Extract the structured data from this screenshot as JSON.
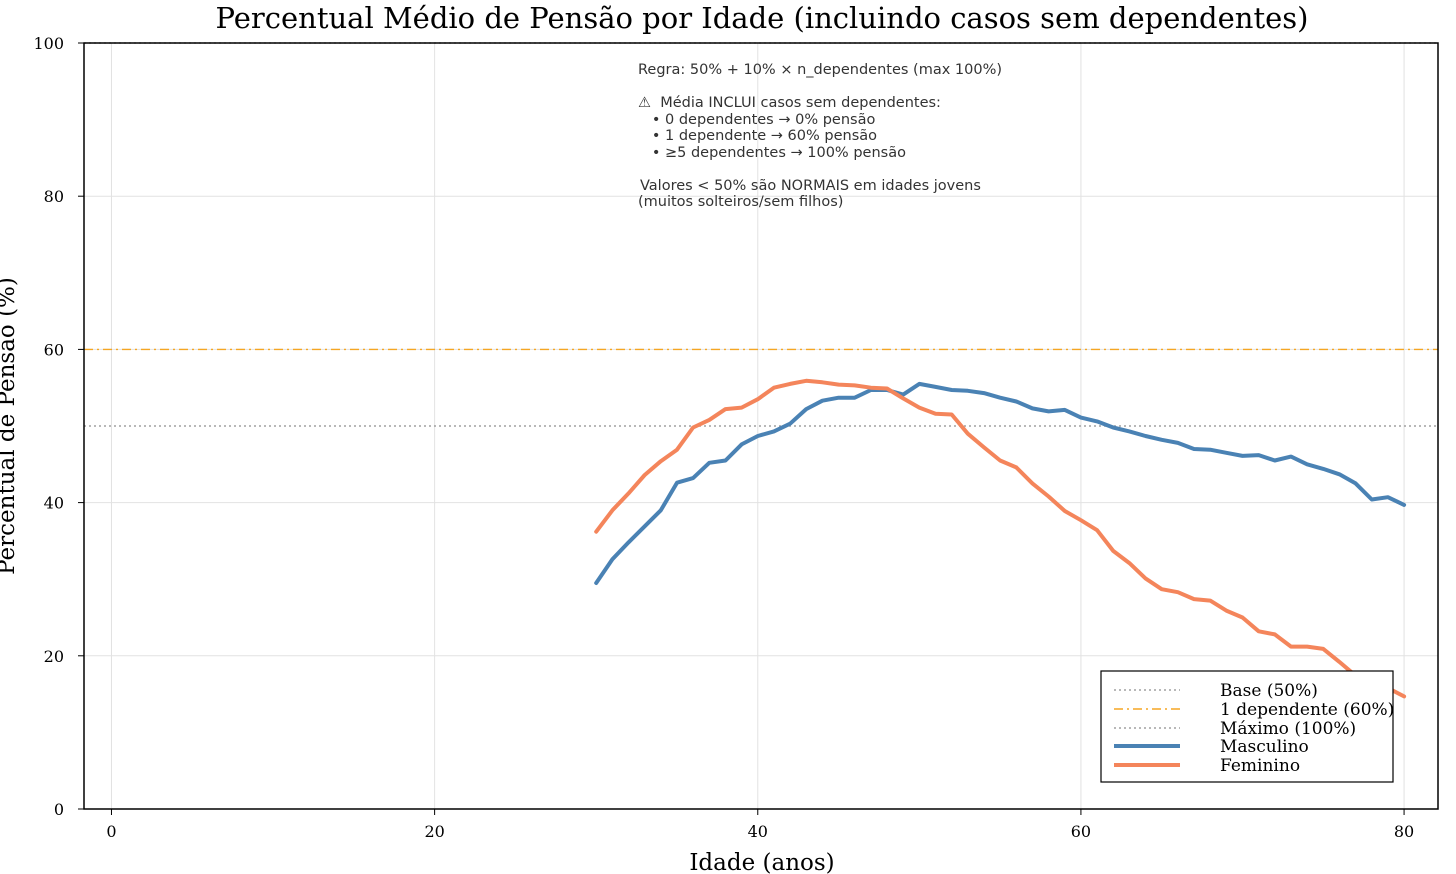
{
  "chart_data": {
    "type": "line",
    "title": "Percentual Médio de Pensão por Idade (incluindo casos sem dependentes)",
    "xlabel": "Idade (anos)",
    "ylabel": "Percentual de Pensão (%)",
    "xlim": [
      -1.7,
      82.1
    ],
    "ylim": [
      0,
      100
    ],
    "xticks": [
      0,
      20,
      40,
      60,
      80
    ],
    "yticks": [
      0,
      20,
      40,
      60,
      80,
      100
    ],
    "grid": true,
    "legend_position": "bottom-right",
    "reference_lines": [
      {
        "name": "Base (50%)",
        "y": 50,
        "color": "#a0a0a0",
        "style": "dotted"
      },
      {
        "name": "1 dependente (60%)",
        "y": 60,
        "color": "#f5a623",
        "style": "dashdot"
      },
      {
        "name": "Máximo (100%)",
        "y": 100,
        "color": "#a0a0a0",
        "style": "dotted"
      }
    ],
    "series": [
      {
        "name": "Masculino",
        "color": "#4a82b4",
        "x": [
          30,
          31,
          32,
          33,
          34,
          35,
          36,
          37,
          38,
          39,
          40,
          41,
          42,
          43,
          44,
          45,
          46,
          47,
          48,
          49,
          50,
          51,
          52,
          53,
          54,
          55,
          56,
          57,
          58,
          59,
          60,
          61,
          62,
          63,
          64,
          65,
          66,
          67,
          68,
          69,
          70,
          71,
          72,
          73,
          74,
          75,
          76,
          77,
          78,
          79,
          80
        ],
        "y": [
          29.5,
          32.6,
          34.8,
          36.9,
          39.0,
          42.6,
          43.2,
          45.2,
          45.5,
          47.6,
          48.7,
          49.3,
          50.3,
          52.2,
          53.3,
          53.7,
          53.7,
          54.7,
          54.7,
          54.1,
          55.5,
          55.1,
          54.7,
          54.6,
          54.3,
          53.7,
          53.2,
          52.3,
          51.9,
          52.1,
          51.1,
          50.6,
          49.8,
          49.3,
          48.7,
          48.2,
          47.8,
          47.0,
          46.9,
          46.5,
          46.1,
          46.2,
          45.5,
          46.0,
          45.0,
          44.4,
          43.7,
          42.5,
          40.4,
          40.7,
          39.7
        ]
      },
      {
        "name": "Feminino",
        "color": "#f4855b",
        "x": [
          30,
          31,
          32,
          33,
          34,
          35,
          36,
          37,
          38,
          39,
          40,
          41,
          42,
          43,
          44,
          45,
          46,
          47,
          48,
          49,
          50,
          51,
          52,
          53,
          54,
          55,
          56,
          57,
          58,
          59,
          60,
          61,
          62,
          63,
          64,
          65,
          66,
          67,
          68,
          69,
          70,
          71,
          72,
          73,
          74,
          75,
          76,
          77,
          78,
          79,
          80
        ],
        "y": [
          36.2,
          39.0,
          41.2,
          43.6,
          45.4,
          46.9,
          49.8,
          50.8,
          52.2,
          52.4,
          53.5,
          55.0,
          55.5,
          55.9,
          55.7,
          55.4,
          55.3,
          55.0,
          54.9,
          53.6,
          52.4,
          51.6,
          51.5,
          49.0,
          47.2,
          45.5,
          44.6,
          42.5,
          40.8,
          38.9,
          37.7,
          36.4,
          33.7,
          32.1,
          30.1,
          28.7,
          28.3,
          27.4,
          27.2,
          25.9,
          25.0,
          23.2,
          22.8,
          21.2,
          21.2,
          20.9,
          19.2,
          17.4,
          16.6,
          15.8,
          14.7
        ]
      }
    ],
    "annotation": [
      "Regra: 50% + 10% × n_dependentes (max 100%)",
      "",
      "⚠  Média INCLUI casos sem dependentes:",
      "   • 0 dependentes → 0% pensão",
      "   • 1 dependente → 60% pensão",
      "   • ≥5 dependentes → 100% pensão",
      "",
      "Valores < 50% são NORMAIS em idades jovens",
      "(muitos solteiros/sem filhos)"
    ],
    "legend": [
      "Base (50%)",
      "1 dependente (60%)",
      "Máximo (100%)",
      "Masculino",
      "Feminino"
    ]
  }
}
